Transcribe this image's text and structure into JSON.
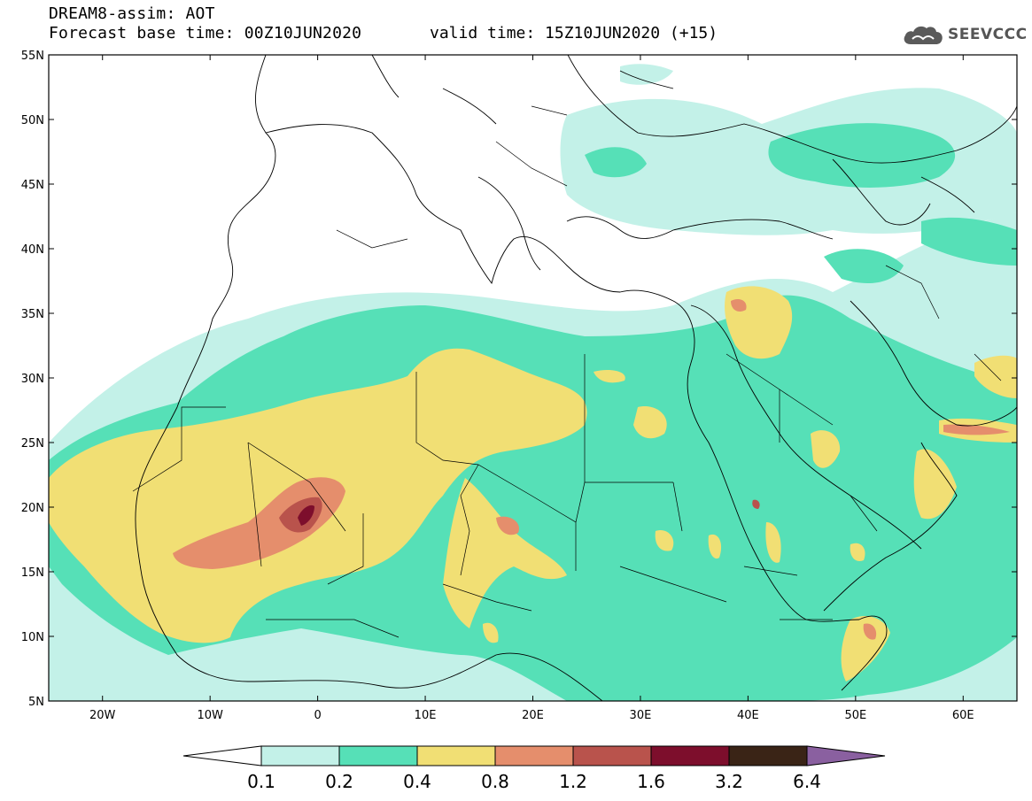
{
  "header": {
    "title_line1": "DREAM8-assim: AOT",
    "title_line2": "Forecast base time: 00Z10JUN2020",
    "valid_time": "valid time: 15Z10JUN2020 (+15)",
    "logo_text": "SEEVCCC",
    "logo_icon": "cloud-icon"
  },
  "map": {
    "lat_labels": [
      "55N",
      "50N",
      "45N",
      "40N",
      "35N",
      "30N",
      "25N",
      "20N",
      "15N",
      "10N",
      "5N"
    ],
    "lon_labels": [
      "20W",
      "10W",
      "0",
      "10E",
      "20E",
      "30E",
      "40E",
      "50E",
      "60E"
    ],
    "lat_range": [
      5,
      55
    ],
    "lon_range": [
      -25,
      65
    ]
  },
  "colorbar": {
    "labels": [
      "0.1",
      "0.2",
      "0.4",
      "0.8",
      "1.2",
      "1.6",
      "3.2",
      "6.4"
    ],
    "colors": [
      "#ffffff",
      "#c3f1e8",
      "#56e0b7",
      "#f1df74",
      "#e58e6c",
      "#b9534c",
      "#7d0e2c",
      "#3a2416",
      "#8a60a0"
    ]
  },
  "palette": {
    "aot_0_1": "#c3f1e8",
    "aot_0_2": "#56e0b7",
    "aot_0_4": "#f1df74",
    "aot_0_8": "#e58e6c",
    "aot_1_2": "#b9534c",
    "aot_1_6": "#7d0e2c"
  }
}
